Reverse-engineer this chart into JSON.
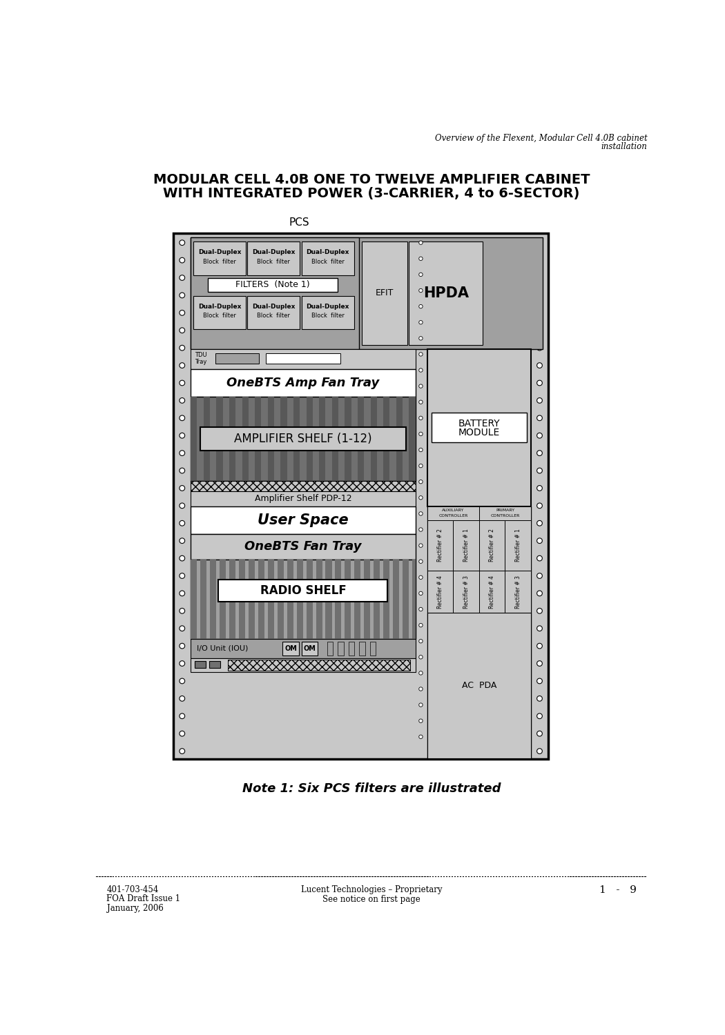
{
  "page_title_line1": "Overview of the Flexent, Modular Cell 4.0B cabinet",
  "page_title_line2": "installation",
  "main_title_line1": "MODULAR CELL 4.0B ONE TO TWELVE AMPLIFIER CABINET",
  "main_title_line2": "WITH INTEGRATED POWER (3-CARRIER, 4 to 6-SECTOR)",
  "note": "Note 1: Six PCS filters are illustrated",
  "footer_left_line1": "401-703-454",
  "footer_left_line2": "FOA Draft Issue 1",
  "footer_left_line3": "January, 2006",
  "footer_center_line1": "Lucent Technologies – Proprietary",
  "footer_center_line2": "See notice on first page",
  "footer_right": "1   -   9",
  "bg_color": "#ffffff",
  "light_gray": "#c8c8c8",
  "mid_gray": "#a0a0a0",
  "dark_gray": "#707070",
  "darker_gray": "#585858",
  "white": "#ffffff",
  "black": "#000000"
}
